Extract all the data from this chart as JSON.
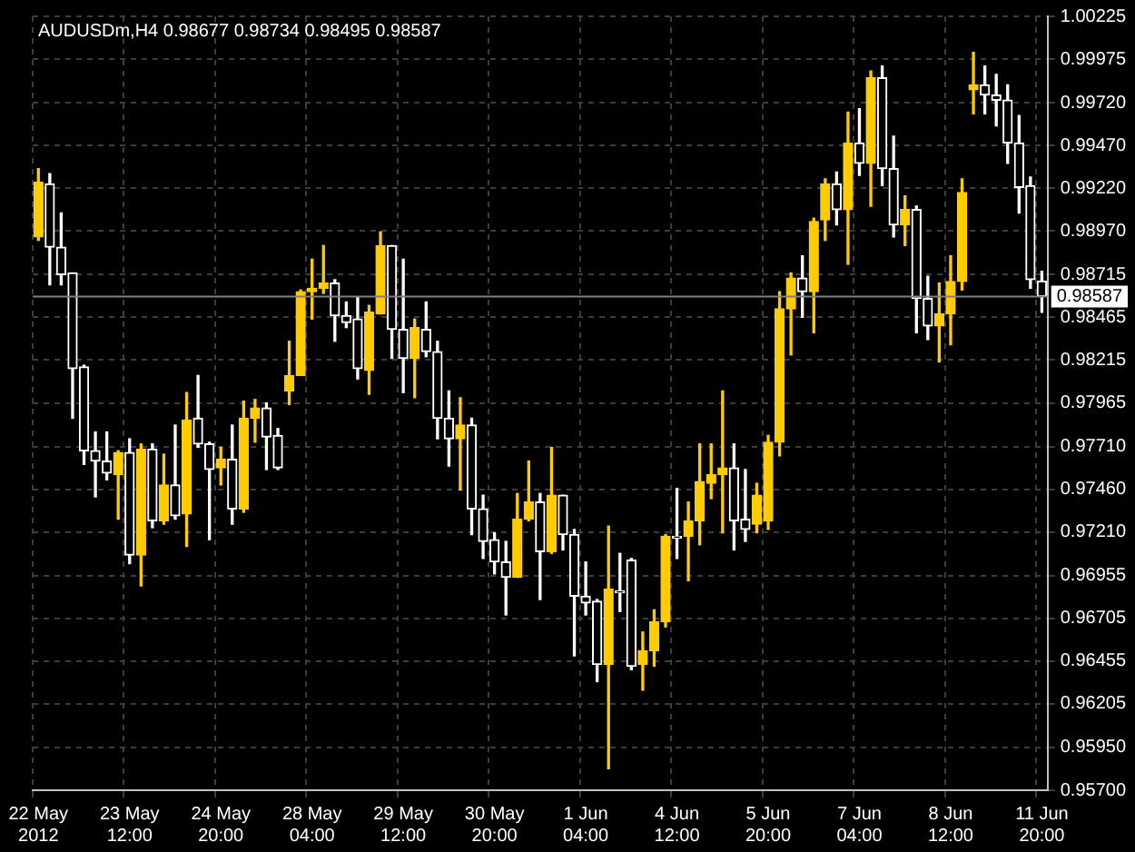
{
  "chart_data": {
    "type": "candlestick",
    "title": "AUDUSDm,H4 0.98677 0.98734 0.98495 0.98587",
    "categories": [
      "22 May 2012",
      null,
      null,
      null,
      null,
      null,
      null,
      null,
      "23 May 12:00",
      null,
      null,
      null,
      null,
      null,
      null,
      null,
      "24 May 20:00",
      null,
      null,
      null,
      null,
      null,
      null,
      null,
      "28 May 04:00",
      null,
      null,
      null,
      null,
      null,
      null,
      null,
      "29 May 12:00",
      null,
      null,
      null,
      null,
      null,
      null,
      null,
      "30 May 20:00",
      null,
      null,
      null,
      null,
      null,
      null,
      null,
      "1 Jun 04:00",
      null,
      null,
      null,
      null,
      null,
      null,
      null,
      "4 Jun 12:00",
      null,
      null,
      null,
      null,
      null,
      null,
      null,
      "5 Jun 20:00",
      null,
      null,
      null,
      null,
      null,
      null,
      null,
      "7 Jun 04:00",
      null,
      null,
      null,
      null,
      null,
      null,
      null,
      "8 Jun 12:00",
      null,
      null,
      null,
      null,
      null,
      null,
      null,
      "11 Jun 20:00"
    ],
    "ohlc": [
      [
        0.98935,
        0.99335,
        0.98915,
        0.99255
      ],
      [
        0.99245,
        0.99305,
        0.98655,
        0.98875
      ],
      [
        0.98875,
        0.99075,
        0.98655,
        0.98715
      ],
      [
        0.98725,
        0.98725,
        0.97875,
        0.98165
      ],
      [
        0.98175,
        0.98185,
        0.97605,
        0.97685
      ],
      [
        0.97685,
        0.97795,
        0.97415,
        0.97625
      ],
      [
        0.97625,
        0.97795,
        0.97515,
        0.97555
      ],
      [
        0.97545,
        0.97685,
        0.97285,
        0.97675
      ],
      [
        0.97675,
        0.97755,
        0.97025,
        0.97075
      ],
      [
        0.97075,
        0.97725,
        0.96895,
        0.97695
      ],
      [
        0.97695,
        0.97725,
        0.97235,
        0.97275
      ],
      [
        0.97275,
        0.97665,
        0.97255,
        0.97485
      ],
      [
        0.97485,
        0.97835,
        0.97285,
        0.97305
      ],
      [
        0.97315,
        0.98025,
        0.97125,
        0.97865
      ],
      [
        0.97875,
        0.98125,
        0.97705,
        0.97725
      ],
      [
        0.97725,
        0.97735,
        0.97165,
        0.97575
      ],
      [
        0.97585,
        0.97705,
        0.97485,
        0.97635
      ],
      [
        0.97635,
        0.97835,
        0.97255,
        0.97345
      ],
      [
        0.97345,
        0.97975,
        0.97325,
        0.97875
      ],
      [
        0.97875,
        0.97985,
        0.97735,
        0.97935
      ],
      [
        0.97935,
        0.97965,
        0.97575,
        0.97765
      ],
      [
        0.97775,
        0.97815,
        0.97575,
        0.97585
      ],
      [
        0.98035,
        0.98325,
        0.97955,
        0.98125
      ],
      [
        0.98125,
        0.98625,
        0.98125,
        0.98615
      ],
      [
        0.98615,
        0.98805,
        0.98455,
        0.98635
      ],
      [
        0.98635,
        0.98885,
        0.98605,
        0.98665
      ],
      [
        0.98665,
        0.98685,
        0.98325,
        0.98475
      ],
      [
        0.98475,
        0.98555,
        0.98405,
        0.98435
      ],
      [
        0.98455,
        0.98585,
        0.98105,
        0.98165
      ],
      [
        0.98155,
        0.98535,
        0.98015,
        0.98495
      ],
      [
        0.98485,
        0.98965,
        0.98485,
        0.98885
      ],
      [
        0.98885,
        0.98885,
        0.98225,
        0.98395
      ],
      [
        0.98395,
        0.98805,
        0.98025,
        0.98225
      ],
      [
        0.98225,
        0.98455,
        0.97995,
        0.98405
      ],
      [
        0.98395,
        0.98555,
        0.98235,
        0.98265
      ],
      [
        0.98265,
        0.98325,
        0.97755,
        0.97875
      ],
      [
        0.97875,
        0.98035,
        0.97595,
        0.97755
      ],
      [
        0.97755,
        0.97995,
        0.97455,
        0.97835
      ],
      [
        0.97835,
        0.97875,
        0.97195,
        0.97345
      ],
      [
        0.97345,
        0.97425,
        0.97055,
        0.97155
      ],
      [
        0.97165,
        0.97205,
        0.96965,
        0.97035
      ],
      [
        0.97035,
        0.97155,
        0.96725,
        0.96945
      ],
      [
        0.96945,
        0.97435,
        0.96945,
        0.97285
      ],
      [
        0.97285,
        0.97625,
        0.97275,
        0.97385
      ],
      [
        0.97385,
        0.97435,
        0.96815,
        0.97095
      ],
      [
        0.97095,
        0.97705,
        0.97085,
        0.97425
      ],
      [
        0.97425,
        0.97425,
        0.97105,
        0.97195
      ],
      [
        0.97195,
        0.97225,
        0.96485,
        0.96835
      ],
      [
        0.96835,
        0.97035,
        0.96725,
        0.96795
      ],
      [
        0.96805,
        0.96815,
        0.96335,
        0.96435
      ],
      [
        0.96435,
        0.97245,
        0.95825,
        0.96875
      ],
      [
        0.96865,
        0.97085,
        0.96745,
        0.96855
      ],
      [
        0.97045,
        0.97055,
        0.96405,
        0.96425
      ],
      [
        0.96435,
        0.96625,
        0.96285,
        0.96515
      ],
      [
        0.96515,
        0.96755,
        0.96425,
        0.96685
      ],
      [
        0.96685,
        0.97195,
        0.96655,
        0.97185
      ],
      [
        0.97185,
        0.97465,
        0.97055,
        0.97175
      ],
      [
        0.97185,
        0.97385,
        0.96925,
        0.97275
      ],
      [
        0.97275,
        0.97725,
        0.97135,
        0.97505
      ],
      [
        0.97495,
        0.97725,
        0.97405,
        0.97545
      ],
      [
        0.97545,
        0.98035,
        0.97205,
        0.97585
      ],
      [
        0.97585,
        0.97725,
        0.97105,
        0.97275
      ],
      [
        0.97285,
        0.97575,
        0.97155,
        0.97225
      ],
      [
        0.97255,
        0.97495,
        0.97205,
        0.97425
      ],
      [
        0.97275,
        0.97775,
        0.97225,
        0.97735
      ],
      [
        0.97735,
        0.98615,
        0.97655,
        0.98515
      ],
      [
        0.98515,
        0.98725,
        0.98245,
        0.98695
      ],
      [
        0.98695,
        0.98825,
        0.98465,
        0.98615
      ],
      [
        0.98615,
        0.99045,
        0.98375,
        0.99025
      ],
      [
        0.99035,
        0.99275,
        0.98915,
        0.99245
      ],
      [
        0.99245,
        0.99315,
        0.99005,
        0.99095
      ],
      [
        0.99095,
        0.99665,
        0.98775,
        0.99485
      ],
      [
        0.99485,
        0.99685,
        0.99295,
        0.99365
      ],
      [
        0.99365,
        0.99905,
        0.99115,
        0.99865
      ],
      [
        0.99865,
        0.99935,
        0.99235,
        0.99335
      ],
      [
        0.99335,
        0.99525,
        0.98935,
        0.99005
      ],
      [
        0.99005,
        0.99175,
        0.98885,
        0.99095
      ],
      [
        0.99095,
        0.99115,
        0.98375,
        0.98575
      ],
      [
        0.98575,
        0.98705,
        0.98335,
        0.98415
      ],
      [
        0.98415,
        0.98665,
        0.98205,
        0.98485
      ],
      [
        0.98485,
        0.98825,
        0.98305,
        0.98675
      ],
      [
        0.98675,
        0.99275,
        0.98625,
        0.99195
      ],
      [
        0.99795,
        1.00015,
        0.99655,
        0.99825
      ],
      [
        0.99825,
        0.99935,
        0.99655,
        0.99765
      ],
      [
        0.99765,
        0.99885,
        0.99585,
        0.99735
      ],
      [
        0.99735,
        0.99825,
        0.99365,
        0.99485
      ],
      [
        0.99485,
        0.99645,
        0.99075,
        0.99225
      ],
      [
        0.99235,
        0.99285,
        0.98635,
        0.98685
      ],
      [
        0.98677,
        0.98734,
        0.98495,
        0.98587
      ]
    ],
    "colors": [
      "#ffcc00",
      "#ffffff",
      "#ffffff",
      "#ffffff",
      "#ffffff",
      "#ffffff",
      "#ffffff",
      "#ffcc00",
      "#ffffff",
      "#ffcc00",
      "#ffffff",
      "#ffcc00",
      "#ffffff",
      "#ffcc00",
      "#ffffff",
      "#ffffff",
      "#ffcc00",
      "#ffffff",
      "#ffcc00",
      "#ffcc00",
      "#ffffff",
      "#ffffff",
      "#ffcc00",
      "#ffcc00",
      "#ffcc00",
      "#ffcc00",
      "#ffffff",
      "#ffffff",
      "#ffffff",
      "#ffcc00",
      "#ffcc00",
      "#ffffff",
      "#ffffff",
      "#ffcc00",
      "#ffffff",
      "#ffffff",
      "#ffffff",
      "#ffcc00",
      "#ffffff",
      "#ffffff",
      "#ffffff",
      "#ffffff",
      "#ffcc00",
      "#ffcc00",
      "#ffffff",
      "#ffcc00",
      "#ffffff",
      "#ffffff",
      "#ffffff",
      "#ffffff",
      "#ffcc00",
      "#ffffff",
      "#ffffff",
      "#ffcc00",
      "#ffcc00",
      "#ffcc00",
      "#ffffff",
      "#ffcc00",
      "#ffcc00",
      "#ffcc00",
      "#ffcc00",
      "#ffffff",
      "#ffffff",
      "#ffcc00",
      "#ffcc00",
      "#ffcc00",
      "#ffcc00",
      "#ffffff",
      "#ffcc00",
      "#ffcc00",
      "#ffffff",
      "#ffcc00",
      "#ffffff",
      "#ffcc00",
      "#ffffff",
      "#ffffff",
      "#ffcc00",
      "#ffffff",
      "#ffffff",
      "#ffcc00",
      "#ffcc00",
      "#ffcc00",
      "#ffcc00",
      "#ffffff",
      "#ffffff",
      "#ffffff",
      "#ffffff",
      "#ffffff",
      "#ffffff"
    ],
    "ylim": [
      0.957,
      1.00225
    ],
    "yticks": [
      1.00225,
      0.99975,
      {
        "value": 0.9972,
        "label": "0.99720"
      },
      {
        "value": 0.9947,
        "label": "0.99470"
      },
      {
        "value": 0.9922,
        "label": "0.99220"
      },
      {
        "value": 0.9897,
        "label": "0.98970"
      },
      0.98715,
      0.98465,
      0.98215,
      0.97965,
      {
        "value": 0.9771,
        "label": "0.97710"
      },
      {
        "value": 0.9746,
        "label": "0.97460"
      },
      {
        "value": 0.9721,
        "label": "0.97210"
      },
      0.96955,
      0.96705,
      0.96455,
      0.96205,
      {
        "value": 0.9595,
        "label": "0.95950"
      },
      {
        "value": 0.957,
        "label": "0.95700"
      }
    ],
    "ref_lines": [
      {
        "axis": "y",
        "value": 0.98587,
        "label": "0.98587",
        "color": "#808080"
      }
    ],
    "grid": true
  }
}
